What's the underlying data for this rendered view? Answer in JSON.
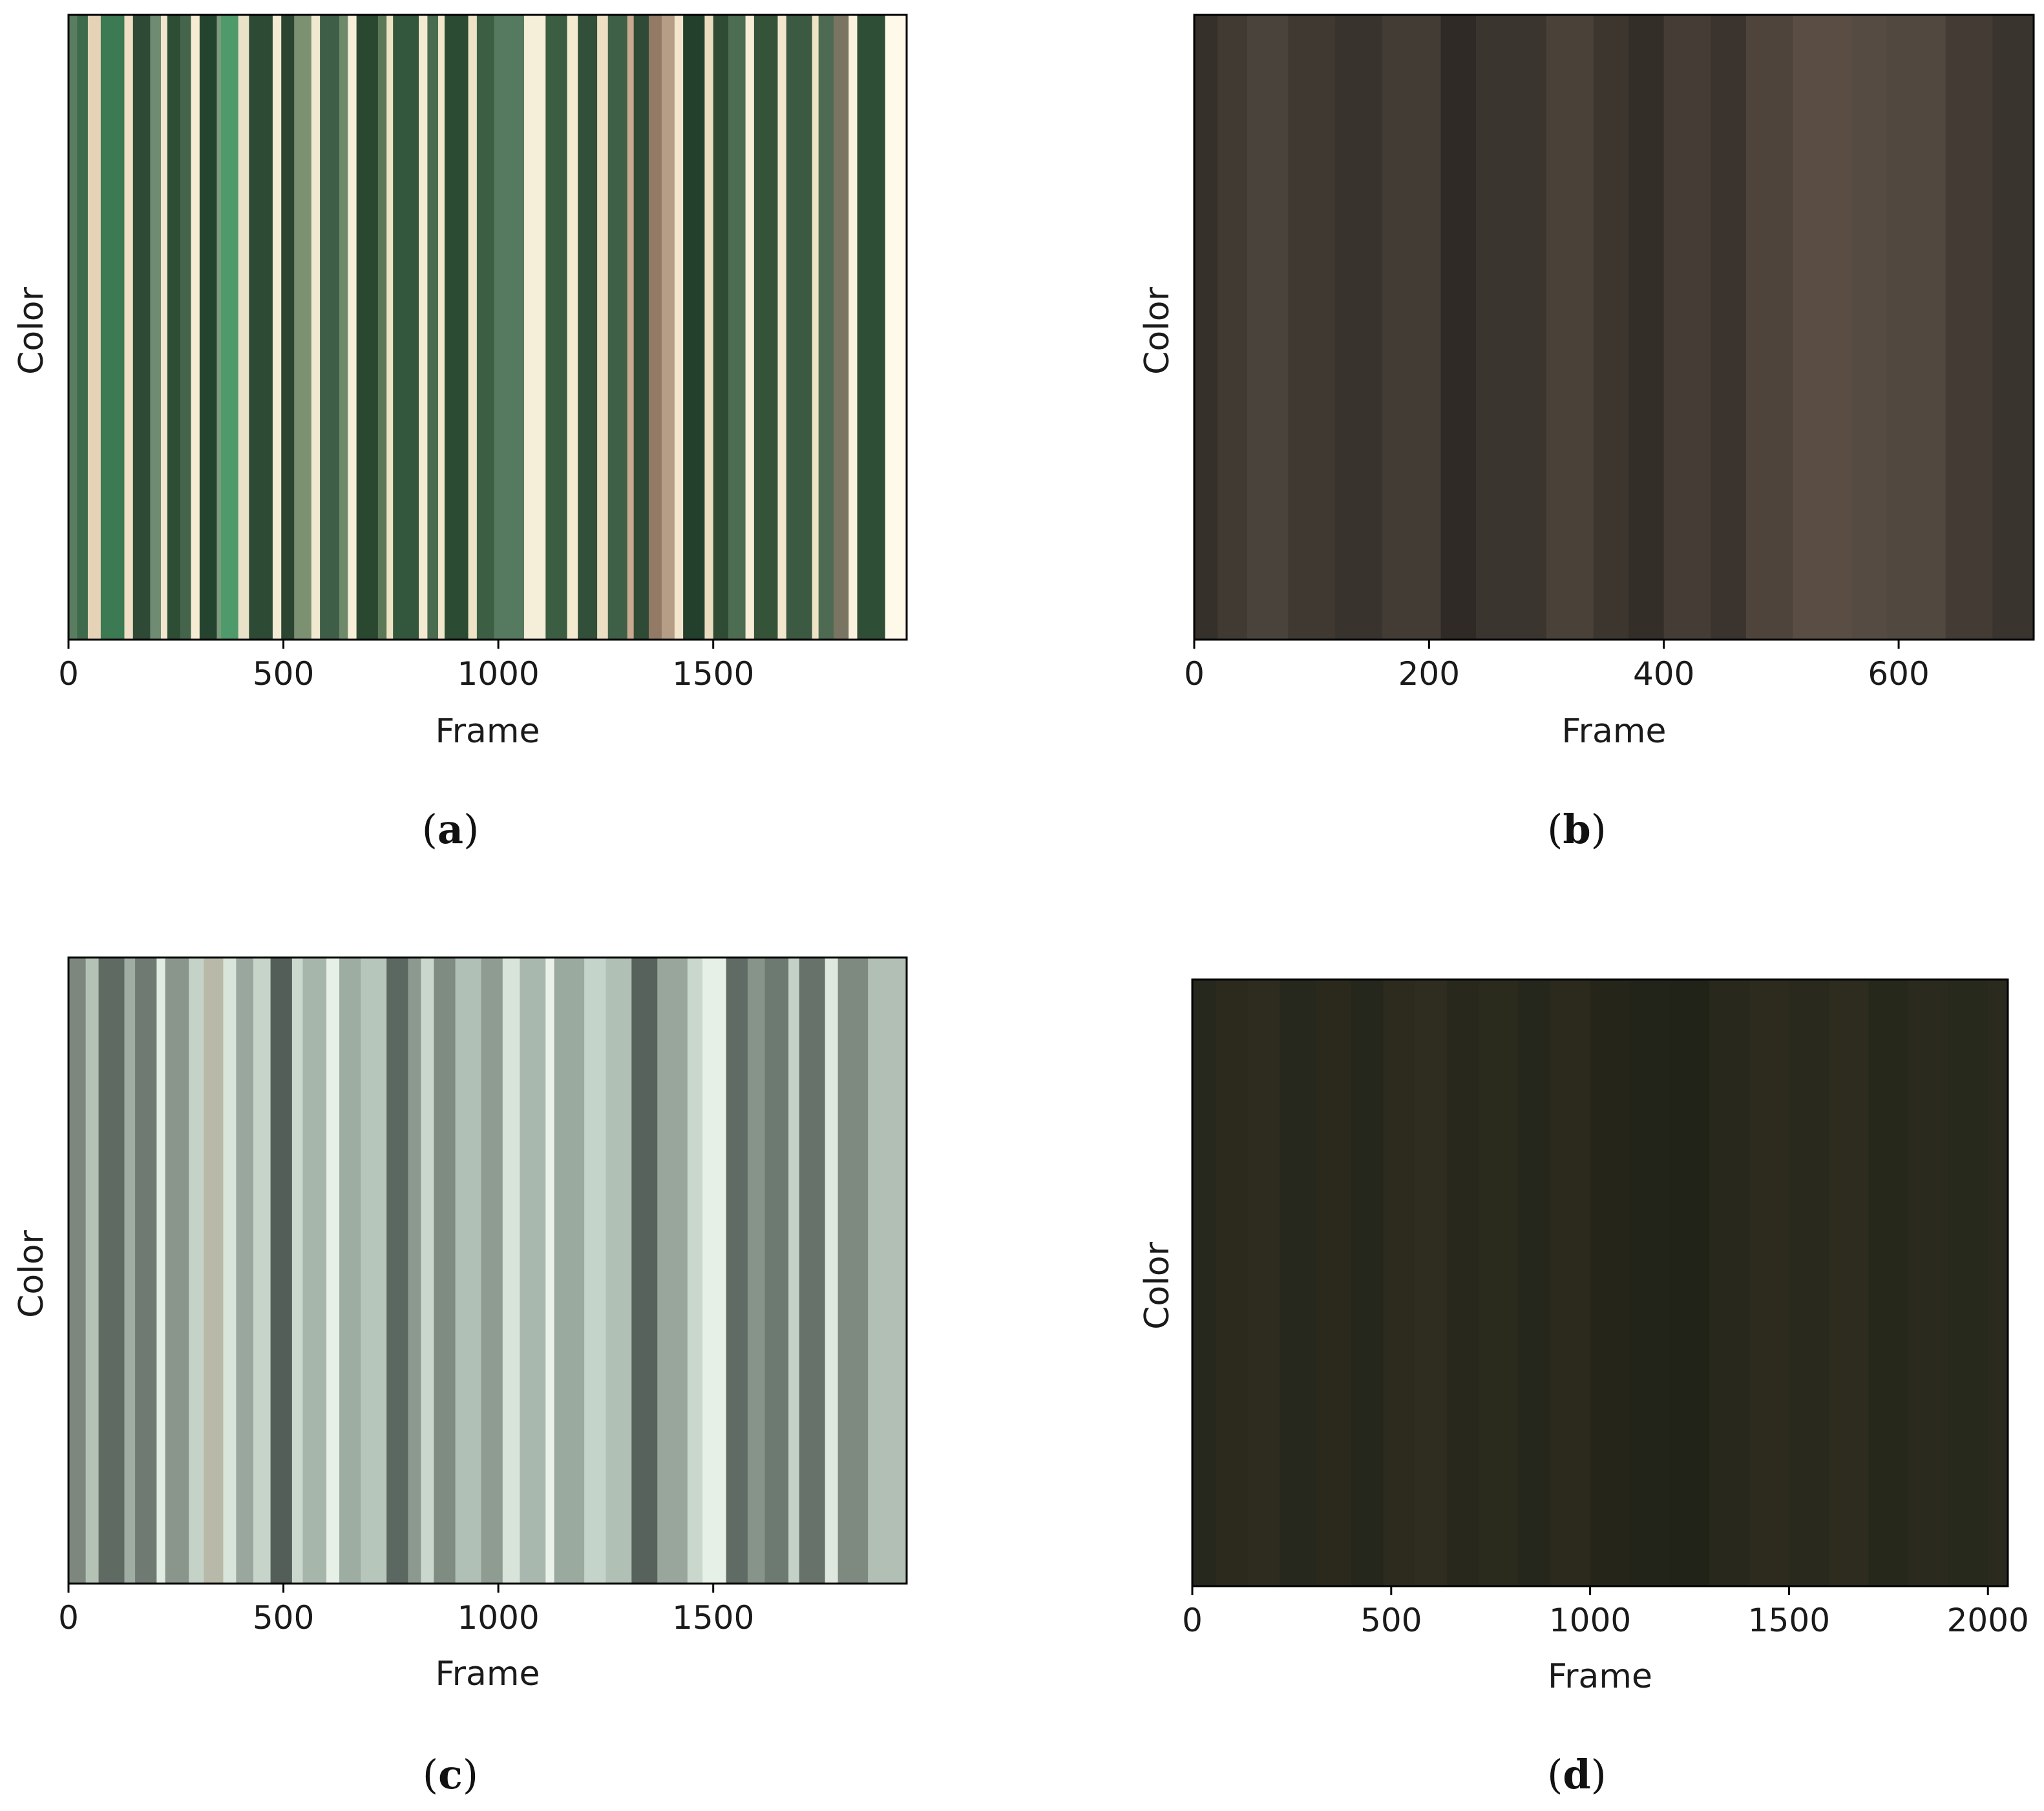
{
  "chart_data": [
    {
      "panel": "a",
      "caption_open": "(",
      "caption_letter": "a",
      "caption_close": ")",
      "type": "heatmap",
      "xlabel": "Frame",
      "ylabel": "Color",
      "xlim": [
        0,
        1950
      ],
      "xticks": [
        0,
        500,
        1000,
        1500
      ],
      "tick_labels": [
        "0",
        "500",
        "1000",
        "1500"
      ],
      "grid": false,
      "stripes": [
        {
          "start": 0,
          "color": "#5a7d62"
        },
        {
          "start": 20,
          "color": "#3e6a4c"
        },
        {
          "start": 45,
          "color": "#e6d2b7"
        },
        {
          "start": 75,
          "color": "#3b7a52"
        },
        {
          "start": 130,
          "color": "#f0dfc6"
        },
        {
          "start": 150,
          "color": "#2e4a36"
        },
        {
          "start": 190,
          "color": "#6f8c73"
        },
        {
          "start": 215,
          "color": "#f2e6cf"
        },
        {
          "start": 230,
          "color": "#2d4d35"
        },
        {
          "start": 260,
          "color": "#44644b"
        },
        {
          "start": 285,
          "color": "#f7ecd3"
        },
        {
          "start": 305,
          "color": "#254430"
        },
        {
          "start": 345,
          "color": "#7d9a7c"
        },
        {
          "start": 355,
          "color": "#4e9a6b"
        },
        {
          "start": 395,
          "color": "#e9e1c8"
        },
        {
          "start": 420,
          "color": "#2d4a34"
        },
        {
          "start": 475,
          "color": "#f4ebd5"
        },
        {
          "start": 495,
          "color": "#2c4432"
        },
        {
          "start": 525,
          "color": "#7c9172"
        },
        {
          "start": 565,
          "color": "#f0e8cf"
        },
        {
          "start": 585,
          "color": "#3f5e47"
        },
        {
          "start": 630,
          "color": "#6e8a6b"
        },
        {
          "start": 650,
          "color": "#f7efd7"
        },
        {
          "start": 670,
          "color": "#2a4730"
        },
        {
          "start": 720,
          "color": "#5c7856"
        },
        {
          "start": 740,
          "color": "#ede2c4"
        },
        {
          "start": 755,
          "color": "#33573c"
        },
        {
          "start": 815,
          "color": "#f4ead1"
        },
        {
          "start": 835,
          "color": "#496b50"
        },
        {
          "start": 860,
          "color": "#f1e7cd"
        },
        {
          "start": 875,
          "color": "#2b4b33"
        },
        {
          "start": 930,
          "color": "#eee3c7"
        },
        {
          "start": 950,
          "color": "#3c5f44"
        },
        {
          "start": 990,
          "color": "#567a5f"
        },
        {
          "start": 1060,
          "color": "#f5eed8"
        },
        {
          "start": 1110,
          "color": "#3b5e43"
        },
        {
          "start": 1160,
          "color": "#f3ead0"
        },
        {
          "start": 1185,
          "color": "#324f39"
        },
        {
          "start": 1230,
          "color": "#eddfc3"
        },
        {
          "start": 1255,
          "color": "#3e6046"
        },
        {
          "start": 1300,
          "color": "#c9a990"
        },
        {
          "start": 1315,
          "color": "#2f4b35"
        },
        {
          "start": 1350,
          "color": "#927a66"
        },
        {
          "start": 1380,
          "color": "#b69d85"
        },
        {
          "start": 1410,
          "color": "#f3e4cc"
        },
        {
          "start": 1430,
          "color": "#22402c"
        },
        {
          "start": 1480,
          "color": "#eadcbf"
        },
        {
          "start": 1500,
          "color": "#304b34"
        },
        {
          "start": 1535,
          "color": "#4d6d53"
        },
        {
          "start": 1575,
          "color": "#f7ecd5"
        },
        {
          "start": 1595,
          "color": "#345339"
        },
        {
          "start": 1650,
          "color": "#f2e6cd"
        },
        {
          "start": 1670,
          "color": "#3c5a41"
        },
        {
          "start": 1730,
          "color": "#efe3c6"
        },
        {
          "start": 1745,
          "color": "#4f6a52"
        },
        {
          "start": 1780,
          "color": "#7a7463"
        },
        {
          "start": 1815,
          "color": "#fbf2dd"
        },
        {
          "start": 1835,
          "color": "#2f4e36"
        },
        {
          "start": 1900,
          "color": "#fff9ea"
        },
        {
          "start": 1950,
          "color": "#fff9ea"
        }
      ]
    },
    {
      "panel": "b",
      "caption_open": "(",
      "caption_letter": "b",
      "caption_close": ")",
      "type": "heatmap",
      "xlabel": "Frame",
      "ylabel": "Color",
      "xlim": [
        0,
        715
      ],
      "xticks": [
        0,
        200,
        400,
        600
      ],
      "tick_labels": [
        "0",
        "200",
        "400",
        "600"
      ],
      "grid": false,
      "stripes": [
        {
          "start": 0,
          "color": "#353029"
        },
        {
          "start": 20,
          "color": "#403a33"
        },
        {
          "start": 45,
          "color": "#4a433c"
        },
        {
          "start": 80,
          "color": "#3f3932"
        },
        {
          "start": 120,
          "color": "#39332d"
        },
        {
          "start": 160,
          "color": "#433c35"
        },
        {
          "start": 210,
          "color": "#2f2a25"
        },
        {
          "start": 240,
          "color": "#3b352f"
        },
        {
          "start": 300,
          "color": "#4a4239"
        },
        {
          "start": 340,
          "color": "#3d362f"
        },
        {
          "start": 370,
          "color": "#342e28"
        },
        {
          "start": 400,
          "color": "#453d35"
        },
        {
          "start": 440,
          "color": "#3b342e"
        },
        {
          "start": 470,
          "color": "#4e443b"
        },
        {
          "start": 510,
          "color": "#5a4e44"
        },
        {
          "start": 560,
          "color": "#554b42"
        },
        {
          "start": 590,
          "color": "#514840"
        },
        {
          "start": 640,
          "color": "#433b34"
        },
        {
          "start": 680,
          "color": "#3a342e"
        },
        {
          "start": 715,
          "color": "#3a342e"
        }
      ]
    },
    {
      "panel": "c",
      "caption_open": "(",
      "caption_letter": "c",
      "caption_close": ")",
      "type": "heatmap",
      "xlabel": "Frame",
      "ylabel": "Color",
      "xlim": [
        0,
        1950
      ],
      "xticks": [
        0,
        500,
        1000,
        1500
      ],
      "tick_labels": [
        "0",
        "500",
        "1000",
        "1500"
      ],
      "grid": false,
      "stripes": [
        {
          "start": 0,
          "color": "#7d877d"
        },
        {
          "start": 40,
          "color": "#b4c2b6"
        },
        {
          "start": 70,
          "color": "#5f6a63"
        },
        {
          "start": 130,
          "color": "#a0ada3"
        },
        {
          "start": 155,
          "color": "#6e7a72"
        },
        {
          "start": 205,
          "color": "#e0ece2"
        },
        {
          "start": 225,
          "color": "#8a968c"
        },
        {
          "start": 280,
          "color": "#c4d2c7"
        },
        {
          "start": 315,
          "color": "#b8b9a8"
        },
        {
          "start": 360,
          "color": "#d9e4da"
        },
        {
          "start": 390,
          "color": "#9aa79e"
        },
        {
          "start": 430,
          "color": "#c6d4c9"
        },
        {
          "start": 470,
          "color": "#525e57"
        },
        {
          "start": 520,
          "color": "#cad8cd"
        },
        {
          "start": 545,
          "color": "#a7b6ab"
        },
        {
          "start": 600,
          "color": "#e6f0e6"
        },
        {
          "start": 630,
          "color": "#9dada2"
        },
        {
          "start": 680,
          "color": "#b7c6bb"
        },
        {
          "start": 740,
          "color": "#5b6861"
        },
        {
          "start": 790,
          "color": "#8c998f"
        },
        {
          "start": 820,
          "color": "#c9d7cc"
        },
        {
          "start": 850,
          "color": "#7f8c82"
        },
        {
          "start": 900,
          "color": "#b1c0b6"
        },
        {
          "start": 960,
          "color": "#8f9c92"
        },
        {
          "start": 1010,
          "color": "#d8e4da"
        },
        {
          "start": 1050,
          "color": "#a9b8ae"
        },
        {
          "start": 1110,
          "color": "#e9f1e8"
        },
        {
          "start": 1130,
          "color": "#9aaa9f"
        },
        {
          "start": 1200,
          "color": "#c5d4ca"
        },
        {
          "start": 1250,
          "color": "#b0c0b5"
        },
        {
          "start": 1310,
          "color": "#56625b"
        },
        {
          "start": 1370,
          "color": "#98a69c"
        },
        {
          "start": 1440,
          "color": "#c9d7cd"
        },
        {
          "start": 1475,
          "color": "#e6f0e6"
        },
        {
          "start": 1530,
          "color": "#5f6b64"
        },
        {
          "start": 1580,
          "color": "#879489"
        },
        {
          "start": 1620,
          "color": "#6d7a72"
        },
        {
          "start": 1675,
          "color": "#c3d1c6"
        },
        {
          "start": 1700,
          "color": "#66726a"
        },
        {
          "start": 1760,
          "color": "#dfe8de"
        },
        {
          "start": 1790,
          "color": "#7e8a80"
        },
        {
          "start": 1860,
          "color": "#b1bfb4"
        },
        {
          "start": 1950,
          "color": "#b1bfb4"
        }
      ]
    },
    {
      "panel": "d",
      "caption_open": "(",
      "caption_letter": "d",
      "caption_close": ")",
      "type": "heatmap",
      "xlabel": "Frame",
      "ylabel": "Color",
      "xlim": [
        0,
        2050
      ],
      "xticks": [
        0,
        500,
        1000,
        1500,
        2000
      ],
      "tick_labels": [
        "0",
        "500",
        "1000",
        "1500",
        "2000"
      ],
      "grid": false,
      "stripes": [
        {
          "start": 0,
          "color": "#26271d"
        },
        {
          "start": 60,
          "color": "#2b2a1d"
        },
        {
          "start": 140,
          "color": "#2e2c1f"
        },
        {
          "start": 220,
          "color": "#27281d"
        },
        {
          "start": 310,
          "color": "#2a291c"
        },
        {
          "start": 400,
          "color": "#25261c"
        },
        {
          "start": 480,
          "color": "#2c2b1e"
        },
        {
          "start": 560,
          "color": "#2f2d1f"
        },
        {
          "start": 640,
          "color": "#28281d"
        },
        {
          "start": 720,
          "color": "#2a2a1d"
        },
        {
          "start": 820,
          "color": "#26271c"
        },
        {
          "start": 900,
          "color": "#2b2a1d"
        },
        {
          "start": 1000,
          "color": "#25251a"
        },
        {
          "start": 1100,
          "color": "#232419"
        },
        {
          "start": 1200,
          "color": "#222318"
        },
        {
          "start": 1300,
          "color": "#28281c"
        },
        {
          "start": 1400,
          "color": "#2c2b1e"
        },
        {
          "start": 1500,
          "color": "#29291d"
        },
        {
          "start": 1600,
          "color": "#2d2c1f"
        },
        {
          "start": 1700,
          "color": "#27281c"
        },
        {
          "start": 1800,
          "color": "#2b2a1e"
        },
        {
          "start": 1900,
          "color": "#28291d"
        },
        {
          "start": 2000,
          "color": "#2a2a1e"
        },
        {
          "start": 2050,
          "color": "#2a2a1e"
        }
      ]
    }
  ]
}
